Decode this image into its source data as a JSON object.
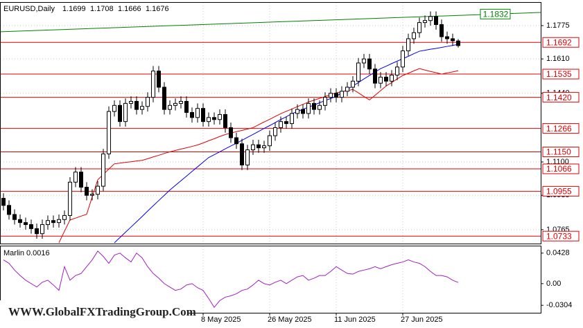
{
  "chart_data": {
    "type": "candlestick",
    "symbol": "EURUSD,Daily",
    "header_ohlc": [
      1.1699,
      1.1708,
      1.1666,
      1.1676
    ],
    "categories": [
      null,
      null,
      null,
      null,
      null,
      null,
      null,
      null,
      null,
      null,
      null,
      null,
      null,
      null,
      null,
      null,
      null,
      null,
      null,
      null,
      null,
      null,
      null,
      null,
      null,
      null,
      null,
      null,
      null,
      null,
      null,
      null,
      null,
      null,
      null,
      null,
      "8 May 2025",
      null,
      null,
      null,
      null,
      null,
      null,
      null,
      null,
      null,
      null,
      null,
      "26 May 2025",
      null,
      null,
      null,
      null,
      null,
      null,
      null,
      null,
      null,
      null,
      null,
      "11 Jun 2025",
      null,
      null,
      null,
      null,
      null,
      null,
      null,
      null,
      null,
      null,
      null,
      "27 Jun 2025",
      null,
      null,
      null,
      null,
      null,
      null,
      null,
      null,
      null,
      null
    ],
    "open": [
      1.092,
      1.0885,
      1.084,
      1.0815,
      1.08,
      1.079,
      1.077,
      1.0745,
      1.079,
      1.081,
      1.08,
      1.0815,
      1.0835,
      1.1,
      1.105,
      1.0975,
      1.0935,
      1.094,
      1.098,
      1.114,
      1.135,
      1.138,
      1.13,
      1.139,
      1.14,
      1.136,
      1.1375,
      1.142,
      1.155,
      1.147,
      1.136,
      1.138,
      1.139,
      1.14,
      1.1345,
      1.132,
      1.1365,
      1.13,
      1.132,
      1.131,
      1.1335,
      1.127,
      1.122,
      1.119,
      1.1085,
      1.116,
      1.1185,
      1.117,
      1.118,
      1.123,
      1.127,
      1.13,
      1.129,
      1.134,
      1.136,
      1.134,
      1.139,
      1.136,
      1.138,
      1.142,
      1.144,
      1.142,
      1.145,
      1.147,
      1.15,
      1.159,
      1.161,
      1.156,
      1.149,
      1.152,
      1.15,
      1.153,
      1.157,
      1.165,
      1.171,
      1.174,
      1.179,
      1.18,
      1.182,
      1.178,
      1.172,
      1.171,
      1.1699
    ],
    "high": [
      1.0945,
      1.091,
      1.0865,
      1.084,
      1.0825,
      1.0815,
      1.0795,
      1.0815,
      1.0835,
      1.0835,
      1.084,
      1.086,
      1.1025,
      1.1075,
      1.1075,
      1.1,
      1.0965,
      1.1005,
      1.1165,
      1.1375,
      1.1405,
      1.1405,
      1.1415,
      1.1425,
      1.1425,
      1.14,
      1.1445,
      1.1575,
      1.1575,
      1.1495,
      1.1405,
      1.1415,
      1.1425,
      1.1425,
      1.137,
      1.139,
      1.139,
      1.1345,
      1.1345,
      1.136,
      1.136,
      1.1295,
      1.1245,
      1.1215,
      1.1185,
      1.121,
      1.121,
      1.1205,
      1.1255,
      1.1295,
      1.1325,
      1.1325,
      1.1365,
      1.1385,
      1.1385,
      1.1415,
      1.1415,
      1.1405,
      1.1445,
      1.1465,
      1.1465,
      1.1475,
      1.1495,
      1.1525,
      1.1615,
      1.1635,
      1.1635,
      1.1585,
      1.1545,
      1.1545,
      1.1555,
      1.1595,
      1.1675,
      1.1735,
      1.1765,
      1.1815,
      1.1825,
      1.1845,
      1.1845,
      1.1805,
      1.1745,
      1.1735,
      1.1708
    ],
    "low": [
      1.086,
      1.0815,
      1.079,
      1.0775,
      1.0765,
      1.0745,
      1.072,
      1.072,
      1.0765,
      1.0775,
      1.0775,
      1.079,
      1.081,
      1.0975,
      1.095,
      1.091,
      1.091,
      1.0915,
      1.0955,
      1.1115,
      1.1325,
      1.1275,
      1.1275,
      1.1365,
      1.1335,
      1.1335,
      1.135,
      1.1395,
      1.1445,
      1.1335,
      1.1335,
      1.1355,
      1.1365,
      1.132,
      1.1295,
      1.1295,
      1.1275,
      1.1275,
      1.1285,
      1.1285,
      1.1245,
      1.1195,
      1.1165,
      1.106,
      1.106,
      1.1135,
      1.1145,
      1.1145,
      1.1155,
      1.1205,
      1.1245,
      1.1265,
      1.1265,
      1.1315,
      1.1315,
      1.1315,
      1.1335,
      1.1335,
      1.1355,
      1.1395,
      1.1395,
      1.1395,
      1.1425,
      1.1445,
      1.1475,
      1.1565,
      1.1535,
      1.1465,
      1.1465,
      1.1475,
      1.1475,
      1.1505,
      1.1545,
      1.1625,
      1.1685,
      1.1715,
      1.1765,
      1.1775,
      1.1755,
      1.1695,
      1.1685,
      1.1674,
      1.1666
    ],
    "close": [
      1.0885,
      1.084,
      1.0815,
      1.08,
      1.079,
      1.077,
      1.0745,
      1.079,
      1.081,
      1.08,
      1.0815,
      1.0835,
      1.1,
      1.105,
      1.0975,
      1.0935,
      1.094,
      1.098,
      1.114,
      1.135,
      1.138,
      1.13,
      1.139,
      1.14,
      1.136,
      1.1375,
      1.142,
      1.155,
      1.147,
      1.136,
      1.138,
      1.139,
      1.14,
      1.1345,
      1.132,
      1.1365,
      1.13,
      1.132,
      1.131,
      1.1335,
      1.127,
      1.122,
      1.119,
      1.1085,
      1.116,
      1.1185,
      1.117,
      1.118,
      1.123,
      1.127,
      1.13,
      1.129,
      1.134,
      1.136,
      1.134,
      1.139,
      1.136,
      1.138,
      1.142,
      1.144,
      1.142,
      1.145,
      1.147,
      1.15,
      1.159,
      1.161,
      1.156,
      1.149,
      1.152,
      1.15,
      1.153,
      1.157,
      1.165,
      1.171,
      1.174,
      1.179,
      1.18,
      1.182,
      1.178,
      1.172,
      1.171,
      1.17,
      1.1676
    ],
    "candle_colors": {
      "up": "#ffffff",
      "down": "#000000"
    },
    "ylim": [
      1.0696,
      1.1888
    ],
    "yticks": [
      {
        "value": 1.1775,
        "label": "1.1775"
      },
      {
        "value": 1.161,
        "label": "1.1610"
      },
      {
        "value": 1.144,
        "label": "1.1440"
      },
      {
        "value": 1.11,
        "label": "1.1100"
      },
      {
        "value": 1.0935,
        "label": "1.0935"
      },
      {
        "value": 1.0765,
        "label": "1.0765"
      }
    ],
    "grid": true,
    "level_color": "#e00000",
    "levels": [
      {
        "value": 1.1692,
        "label": "1.1692"
      },
      {
        "value": 1.1535,
        "label": "1.1535"
      },
      {
        "value": 1.142,
        "label": "1.1420"
      },
      {
        "value": 1.1266,
        "label": "1.1266"
      },
      {
        "value": 1.115,
        "label": "1.1150"
      },
      {
        "value": 1.1066,
        "label": "1.1066"
      },
      {
        "value": 1.0955,
        "label": "1.0955"
      },
      {
        "value": 1.0733,
        "label": "1.0733"
      }
    ],
    "trendline": {
      "color": "#008000",
      "start": 1.1745,
      "end": {
        "value": 1.1832,
        "label": "1.1832"
      }
    },
    "moving_averages": [
      {
        "color": "#0000ee",
        "values": [
          null,
          null,
          null,
          null,
          null,
          null,
          null,
          null,
          null,
          null,
          null,
          null,
          null,
          null,
          null,
          null,
          null,
          null,
          null,
          null,
          1.07,
          1.0726,
          1.0752,
          1.0778,
          1.0804,
          1.083,
          1.0857,
          1.0883,
          1.0909,
          1.0935,
          1.0961,
          1.0984,
          1.1007,
          1.103,
          1.1053,
          1.1076,
          1.1099,
          1.1122,
          1.1136,
          1.115,
          1.1165,
          1.1179,
          1.1193,
          1.1207,
          1.1222,
          1.1236,
          1.1251,
          1.1266,
          1.128,
          1.1295,
          1.131,
          1.1324,
          1.1339,
          1.135,
          1.1361,
          1.1371,
          1.1382,
          1.1393,
          1.1404,
          1.1414,
          1.1425,
          1.1442,
          1.1459,
          1.1476,
          1.1493,
          1.1511,
          1.1528,
          1.1545,
          1.1562,
          1.1574,
          1.1587,
          1.1599,
          1.1611,
          1.1623,
          1.1636,
          1.1648,
          1.1653,
          1.1658,
          1.1662,
          1.1667,
          1.1672,
          1.1677,
          1.1682
        ]
      },
      {
        "color": "#e00000",
        "values": [
          null,
          null,
          null,
          null,
          null,
          null,
          null,
          null,
          null,
          null,
          1.07,
          1.0757,
          1.0813,
          1.0822,
          1.0832,
          1.0841,
          1.0927,
          1.1012,
          1.1038,
          1.1065,
          1.1091,
          1.1094,
          1.1098,
          1.1101,
          1.1105,
          1.1108,
          1.1116,
          1.1125,
          1.1133,
          1.1142,
          1.115,
          1.1157,
          1.1164,
          1.117,
          1.1177,
          1.1184,
          1.1194,
          1.1205,
          1.1215,
          1.1226,
          1.1236,
          1.1243,
          1.125,
          1.1256,
          1.1263,
          1.127,
          1.1284,
          1.1298,
          1.1311,
          1.1325,
          1.1339,
          1.1351,
          1.1362,
          1.1374,
          1.1385,
          1.1397,
          1.1406,
          1.1415,
          1.1424,
          1.1433,
          1.1442,
          1.1448,
          1.1453,
          1.1459,
          1.1442,
          1.1424,
          1.1407,
          1.143,
          1.1453,
          1.1476,
          1.1493,
          1.1511,
          1.1528,
          1.1539,
          1.1551,
          1.1562,
          1.1555,
          1.1548,
          1.1542,
          1.1535,
          1.1541,
          1.1546,
          1.1552
        ]
      }
    ],
    "indicator": {
      "label": "Marlin 0.0016",
      "color": "#a020c0",
      "ylim": [
        -0.0409,
        0.0523
      ],
      "yticks": [
        0.0428,
        {
          "value": 0,
          "label": "0.00"
        },
        -0.0304
      ],
      "values": [
        0.0333,
        0.0285,
        0.019,
        0.0114,
        0.0048,
        0.0,
        -0.0048,
        0.0019,
        0.0048,
        -0.0019,
        -0.0095,
        0.0238,
        0.0048,
        0.0114,
        0.0143,
        0.0238,
        0.0333,
        0.0457,
        0.0381,
        0.0285,
        0.04,
        0.0428,
        0.0362,
        0.0304,
        0.0428,
        0.0362,
        0.0238,
        0.0143,
        0.0076,
        0.0,
        -0.0048,
        -0.0095,
        -0.0076,
        -0.0019,
        0.0,
        -0.0057,
        -0.0095,
        -0.0209,
        -0.0333,
        -0.0238,
        -0.019,
        -0.0171,
        -0.0143,
        -0.0095,
        -0.0076,
        -0.0019,
        0.0048,
        0.0,
        -0.0019,
        0.0019,
        0.0048,
        0.0,
        0.0048,
        0.0095,
        0.0114,
        0.0048,
        0.0076,
        0.0114,
        0.0114,
        0.0171,
        0.0238,
        0.019,
        0.0143,
        0.0133,
        0.0171,
        0.019,
        0.0209,
        0.0238,
        0.0209,
        0.0238,
        0.0266,
        0.0285,
        0.0304,
        0.0333,
        0.0304,
        0.0285,
        0.0238,
        0.0171,
        0.0114,
        0.0114,
        0.0095,
        0.0048,
        0.0016
      ]
    },
    "watermark": "WWW.GlobalFXTradingGroup.Com"
  }
}
